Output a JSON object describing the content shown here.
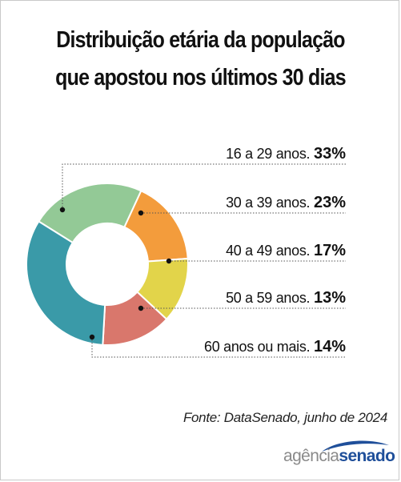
{
  "title_line1": "Distribuição etária da população",
  "title_line2": "que apostou nos últimos 30 dias",
  "source": "Fonte: DataSenado, junho de 2024",
  "logo": {
    "part1": "agência",
    "part2": "senado"
  },
  "chart_data": {
    "type": "pie",
    "donut": true,
    "title": "Distribuição etária da população que apostou nos últimos 30 dias",
    "categories": [
      "16 a 29 anos.",
      "30 a 39 anos.",
      "40 a 49 anos.",
      "50 a 59 anos.",
      "60 anos ou mais."
    ],
    "values": [
      33,
      23,
      17,
      13,
      14
    ],
    "value_labels": [
      "33%",
      "23%",
      "17%",
      "13%",
      "14%"
    ],
    "colors": [
      "#3a9aa8",
      "#93c996",
      "#f39c3c",
      "#e2d44a",
      "#d9776c"
    ],
    "legend": "right"
  }
}
